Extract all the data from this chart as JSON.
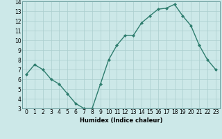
{
  "x": [
    0,
    1,
    2,
    3,
    4,
    5,
    6,
    7,
    8,
    9,
    10,
    11,
    12,
    13,
    14,
    15,
    16,
    17,
    18,
    19,
    20,
    21,
    22,
    23
  ],
  "y": [
    6.5,
    7.5,
    7.0,
    6.0,
    5.5,
    4.5,
    3.5,
    3.0,
    3.0,
    5.5,
    8.0,
    9.5,
    10.5,
    10.5,
    11.8,
    12.5,
    13.2,
    13.3,
    13.7,
    12.5,
    11.5,
    9.5,
    8.0,
    7.0
  ],
  "xlabel": "Humidex (Indice chaleur)",
  "ylim": [
    3,
    14
  ],
  "xlim": [
    -0.5,
    23.5
  ],
  "yticks": [
    3,
    4,
    5,
    6,
    7,
    8,
    9,
    10,
    11,
    12,
    13,
    14
  ],
  "xticks": [
    0,
    1,
    2,
    3,
    4,
    5,
    6,
    7,
    8,
    9,
    10,
    11,
    12,
    13,
    14,
    15,
    16,
    17,
    18,
    19,
    20,
    21,
    22,
    23
  ],
  "line_color": "#2e7d6e",
  "marker_color": "#2e7d6e",
  "bg_color": "#cce8e8",
  "grid_color": "#aacece",
  "axes_bg": "#cce8e8",
  "tick_fontsize": 5.5,
  "xlabel_fontsize": 6.0,
  "linewidth": 1.0,
  "markersize": 2.0
}
